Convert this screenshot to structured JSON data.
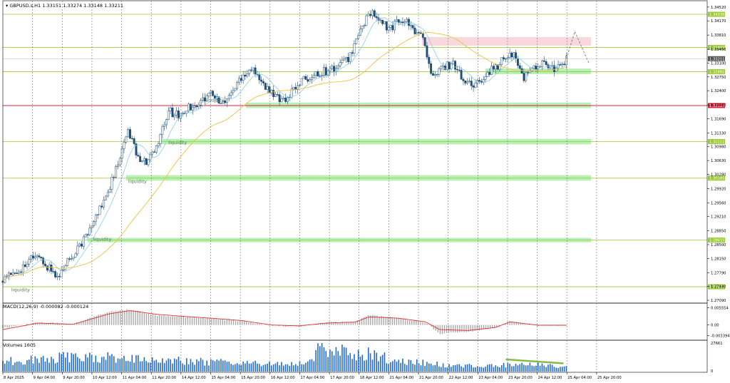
{
  "header": {
    "symbol": "GBPUSD.s,H1",
    "ohlc": "1.33151 1.33274 1.33148 1.33211"
  },
  "colors": {
    "background": "#ffffff",
    "bull_candle": "#1f4e79",
    "bear_candle": "#1f4e79",
    "ma_fast": "#87ceeb",
    "ma_slow": "#f0c040",
    "level_line": "#99cc33",
    "red_level": "#e0203a",
    "liquidity_zone": "#b8f0b8",
    "supply_zone": "#f8d8dc",
    "macd_hist": "#a8a8a8",
    "macd_signal": "#e03030",
    "volume_bar": "#1e6ad8",
    "volume_trend": "#88bb44",
    "projection": "#888888"
  },
  "indicators": {
    "macd_label": "MACD(12,26,9) -0.000082 -0.000124",
    "volumes_label": "Volumes 1605"
  },
  "annotations": {
    "liquidity": "liquidity"
  },
  "chart_data": [
    {
      "type": "candlestick",
      "panel": "price",
      "price_axis": {
        "ticks": [
          "1.34520",
          "1.34170",
          "1.33810",
          "1.33450",
          "1.33100",
          "1.32750",
          "1.32400",
          "1.32040",
          "1.31690",
          "1.31330",
          "1.30980",
          "1.30630",
          "1.30280",
          "1.29920",
          "1.29560",
          "1.29210",
          "1.28850",
          "1.28500",
          "1.28150",
          "1.27790",
          "1.27440",
          "1.27090"
        ],
        "ylim": [
          1.2709,
          1.3468
        ]
      },
      "time_axis": {
        "labels": [
          "8 Apr 2025",
          "9 Apr 04:00",
          "9 Apr 20:00",
          "10 Apr 12:00",
          "11 Apr 04:00",
          "11 Apr 20:00",
          "14 Apr 12:00",
          "15 Apr 04:00",
          "15 Apr 20:00",
          "16 Apr 12:00",
          "17 Apr 04:00",
          "17 Apr 20:00",
          "18 Apr 12:00",
          "21 Apr 04:00",
          "21 Apr 20:00",
          "22 Apr 12:00",
          "23 Apr 04:00",
          "23 Apr 20:00",
          "24 Apr 12:00",
          "25 Apr 04:00",
          "25 Apr 20:00"
        ]
      },
      "horizontal_levels": [
        {
          "price": 1.34336,
          "label": "1.34336",
          "kind": "level"
        },
        {
          "price": 1.33497,
          "label": "1.33497",
          "kind": "level"
        },
        {
          "price": 1.33211,
          "label": "1.33211",
          "kind": "current"
        },
        {
          "price": 1.32881,
          "label": "1.32881",
          "kind": "level"
        },
        {
          "price": 1.32024,
          "label": "1.32024",
          "kind": "red"
        },
        {
          "price": 1.31111,
          "label": "1.31111",
          "kind": "level"
        },
        {
          "price": 1.30185,
          "label": "1.30185",
          "kind": "level"
        },
        {
          "price": 1.28615,
          "label": "1.28615",
          "kind": "level"
        },
        {
          "price": 1.27432,
          "label": "1.27432",
          "kind": "level"
        }
      ],
      "zones": [
        {
          "kind": "supply",
          "from": 1.3354,
          "to": 1.3376,
          "start": 0.595,
          "end": 0.835
        },
        {
          "kind": "liquidity",
          "from": 1.3282,
          "to": 1.3296,
          "start": 0.685,
          "end": 0.835
        },
        {
          "kind": "liquidity",
          "from": 1.3196,
          "to": 1.321,
          "start": 0.345,
          "end": 0.835
        },
        {
          "kind": "liquidity",
          "from": 1.3104,
          "to": 1.3118,
          "start": 0.225,
          "end": 0.835
        },
        {
          "kind": "liquidity",
          "from": 1.3012,
          "to": 1.3026,
          "start": 0.175,
          "end": 0.835
        },
        {
          "kind": "liquidity",
          "from": 1.2856,
          "to": 1.2867,
          "start": 0.12,
          "end": 0.835
        }
      ],
      "liquidity_labels": [
        {
          "price": 1.3212,
          "t": 0.288
        },
        {
          "price": 1.3105,
          "t": 0.235
        },
        {
          "price": 1.3006,
          "t": 0.178
        },
        {
          "price": 1.286,
          "t": 0.128
        },
        {
          "price": 1.2732,
          "t": 0.012
        }
      ],
      "close_path": [
        [
          0.0,
          1.2758
        ],
        [
          0.015,
          1.2778
        ],
        [
          0.03,
          1.2795
        ],
        [
          0.045,
          1.282
        ],
        [
          0.055,
          1.281
        ],
        [
          0.068,
          1.2785
        ],
        [
          0.08,
          1.2768
        ],
        [
          0.09,
          1.2805
        ],
        [
          0.105,
          1.284
        ],
        [
          0.12,
          1.2875
        ],
        [
          0.135,
          1.293
        ],
        [
          0.15,
          1.299
        ],
        [
          0.165,
          1.306
        ],
        [
          0.178,
          1.314
        ],
        [
          0.19,
          1.3075
        ],
        [
          0.205,
          1.306
        ],
        [
          0.22,
          1.31
        ],
        [
          0.235,
          1.319
        ],
        [
          0.25,
          1.3175
        ],
        [
          0.265,
          1.32
        ],
        [
          0.28,
          1.321
        ],
        [
          0.295,
          1.3235
        ],
        [
          0.31,
          1.3205
        ],
        [
          0.325,
          1.3235
        ],
        [
          0.34,
          1.328
        ],
        [
          0.355,
          1.33
        ],
        [
          0.37,
          1.3255
        ],
        [
          0.385,
          1.3225
        ],
        [
          0.4,
          1.322
        ],
        [
          0.415,
          1.3245
        ],
        [
          0.43,
          1.327
        ],
        [
          0.445,
          1.3285
        ],
        [
          0.46,
          1.329
        ],
        [
          0.475,
          1.33
        ],
        [
          0.49,
          1.332
        ],
        [
          0.505,
          1.338
        ],
        [
          0.52,
          1.344
        ],
        [
          0.535,
          1.3415
        ],
        [
          0.55,
          1.3395
        ],
        [
          0.565,
          1.3425
        ],
        [
          0.58,
          1.34
        ],
        [
          0.595,
          1.338
        ],
        [
          0.61,
          1.327
        ],
        [
          0.625,
          1.33
        ],
        [
          0.64,
          1.331
        ],
        [
          0.655,
          1.3265
        ],
        [
          0.67,
          1.325
        ],
        [
          0.685,
          1.3285
        ],
        [
          0.7,
          1.33
        ],
        [
          0.715,
          1.3325
        ],
        [
          0.725,
          1.333
        ],
        [
          0.74,
          1.3275
        ],
        [
          0.755,
          1.33
        ],
        [
          0.77,
          1.3315
        ],
        [
          0.785,
          1.329
        ],
        [
          0.8,
          1.3321
        ]
      ],
      "projection": [
        [
          0.8,
          1.3321
        ],
        [
          0.812,
          1.339
        ],
        [
          0.822,
          1.335
        ],
        [
          0.832,
          1.331
        ]
      ]
    },
    {
      "type": "macd",
      "panel": "macd",
      "ticks": [
        "0.005554",
        "0.00",
        "-0.003394"
      ],
      "ylim": [
        -0.004,
        0.0061
      ],
      "hist": [
        [
          0.0,
          -0.001
        ],
        [
          0.05,
          0.0008
        ],
        [
          0.1,
          0.0003
        ],
        [
          0.15,
          0.0042
        ],
        [
          0.18,
          0.005
        ],
        [
          0.22,
          0.003
        ],
        [
          0.26,
          0.0026
        ],
        [
          0.3,
          0.002
        ],
        [
          0.34,
          0.0012
        ],
        [
          0.38,
          -0.0003
        ],
        [
          0.42,
          -0.0005
        ],
        [
          0.46,
          0.0008
        ],
        [
          0.5,
          0.001
        ],
        [
          0.52,
          0.0032
        ],
        [
          0.56,
          0.0022
        ],
        [
          0.6,
          0.0008
        ],
        [
          0.62,
          -0.0028
        ],
        [
          0.66,
          -0.0022
        ],
        [
          0.7,
          -0.0008
        ],
        [
          0.72,
          0.0012
        ],
        [
          0.76,
          -0.0002
        ],
        [
          0.8,
          -0.0001
        ]
      ],
      "signal": [
        [
          0.0,
          -0.0015
        ],
        [
          0.05,
          0.0006
        ],
        [
          0.1,
          0.0002
        ],
        [
          0.15,
          0.0035
        ],
        [
          0.18,
          0.0046
        ],
        [
          0.22,
          0.0034
        ],
        [
          0.26,
          0.0027
        ],
        [
          0.3,
          0.0021
        ],
        [
          0.34,
          0.0014
        ],
        [
          0.38,
          0.0
        ],
        [
          0.42,
          -0.0003
        ],
        [
          0.46,
          0.0006
        ],
        [
          0.5,
          0.0009
        ],
        [
          0.52,
          0.0026
        ],
        [
          0.56,
          0.0022
        ],
        [
          0.6,
          0.001
        ],
        [
          0.62,
          -0.0015
        ],
        [
          0.66,
          -0.0018
        ],
        [
          0.7,
          -0.0008
        ],
        [
          0.72,
          0.001
        ],
        [
          0.76,
          -0.0001
        ],
        [
          0.8,
          -0.0001
        ]
      ]
    },
    {
      "type": "bar",
      "panel": "volumes",
      "ticks": [
        "27661",
        "0"
      ],
      "ylim": [
        0,
        27661
      ],
      "profile": [
        [
          0.0,
          10000
        ],
        [
          0.05,
          12000
        ],
        [
          0.1,
          15000
        ],
        [
          0.15,
          14000
        ],
        [
          0.2,
          12000
        ],
        [
          0.25,
          11000
        ],
        [
          0.3,
          9000
        ],
        [
          0.35,
          8000
        ],
        [
          0.4,
          7000
        ],
        [
          0.44,
          9000
        ],
        [
          0.45,
          25000
        ],
        [
          0.48,
          20000
        ],
        [
          0.5,
          15000
        ],
        [
          0.52,
          18000
        ],
        [
          0.55,
          12000
        ],
        [
          0.6,
          8000
        ],
        [
          0.65,
          5000
        ],
        [
          0.7,
          6000
        ],
        [
          0.75,
          7000
        ],
        [
          0.8,
          4000
        ]
      ],
      "trendline": [
        [
          0.715,
          0.4
        ],
        [
          0.795,
          0.28
        ]
      ]
    }
  ]
}
